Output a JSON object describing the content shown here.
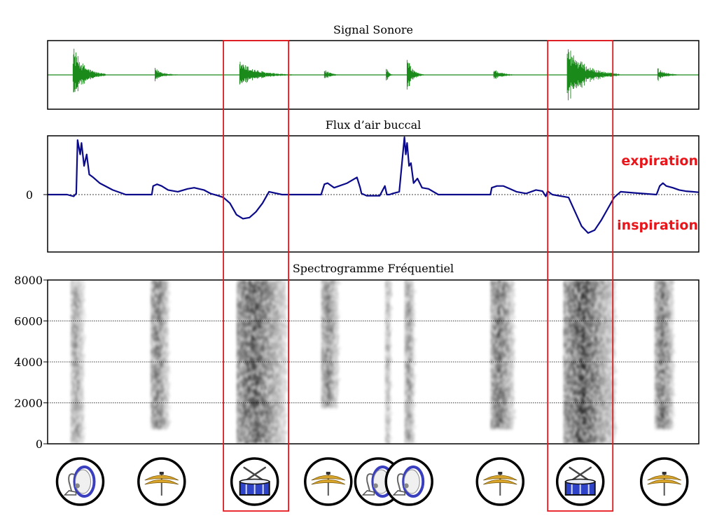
{
  "chart_data": [
    {
      "type": "line",
      "title": "Signal Sonore",
      "series": [
        {
          "name": "Signal Sonore",
          "color": "#1a8a1a"
        }
      ],
      "events": [
        {
          "t": 0.039,
          "amp": 0.95,
          "dur": 0.05
        },
        {
          "t": 0.165,
          "amp": 0.22,
          "dur": 0.04
        },
        {
          "t": 0.295,
          "amp": 0.45,
          "dur": 0.08
        },
        {
          "t": 0.425,
          "amp": 0.18,
          "dur": 0.03
        },
        {
          "t": 0.52,
          "amp": 0.3,
          "dur": 0.01
        },
        {
          "t": 0.552,
          "amp": 0.6,
          "dur": 0.025
        },
        {
          "t": 0.685,
          "amp": 0.2,
          "dur": 0.04
        },
        {
          "t": 0.798,
          "amp": 1.0,
          "dur": 0.08
        },
        {
          "t": 0.937,
          "amp": 0.22,
          "dur": 0.04
        }
      ]
    },
    {
      "type": "line",
      "title": "Flux d’air buccal",
      "ytick_labels": [
        "0"
      ],
      "annotations": [
        {
          "text": "expiration",
          "color": "#e8161b"
        },
        {
          "text": "inspiration",
          "color": "#e8161b"
        }
      ],
      "series": [
        {
          "name": "Flux d’air buccal",
          "color": "#0a0a8a",
          "x": [
            0,
            0.03,
            0.04,
            0.044,
            0.046,
            0.05,
            0.052,
            0.056,
            0.06,
            0.064,
            0.07,
            0.08,
            0.09,
            0.1,
            0.12,
            0.15,
            0.16,
            0.162,
            0.168,
            0.175,
            0.185,
            0.2,
            0.215,
            0.225,
            0.24,
            0.25,
            0.262,
            0.27,
            0.28,
            0.29,
            0.3,
            0.31,
            0.32,
            0.33,
            0.34,
            0.36,
            0.4,
            0.42,
            0.425,
            0.43,
            0.44,
            0.46,
            0.475,
            0.48,
            0.482,
            0.49,
            0.51,
            0.518,
            0.521,
            0.525,
            0.53,
            0.54,
            0.548,
            0.55,
            0.552,
            0.555,
            0.558,
            0.562,
            0.568,
            0.575,
            0.585,
            0.6,
            0.62,
            0.66,
            0.68,
            0.682,
            0.69,
            0.7,
            0.71,
            0.72,
            0.735,
            0.75,
            0.76,
            0.765,
            0.768,
            0.775,
            0.8,
            0.81,
            0.82,
            0.83,
            0.84,
            0.85,
            0.86,
            0.87,
            0.88,
            0.9,
            0.935,
            0.94,
            0.945,
            0.95,
            0.96,
            0.97,
            0.98,
            0.99,
            1.0
          ],
          "values": [
            0,
            0,
            -0.03,
            0.02,
            0.95,
            0.7,
            0.9,
            0.5,
            0.7,
            0.35,
            0.3,
            0.2,
            0.14,
            0.08,
            0.0,
            0.0,
            0.0,
            0.15,
            0.18,
            0.15,
            0.08,
            0.05,
            0.1,
            0.12,
            0.08,
            0.02,
            -0.02,
            -0.05,
            -0.15,
            -0.35,
            -0.42,
            -0.4,
            -0.3,
            -0.15,
            0.05,
            0.0,
            0.0,
            0.0,
            0.18,
            0.2,
            0.12,
            0.2,
            0.3,
            0.12,
            0.02,
            -0.02,
            -0.02,
            0.15,
            0.0,
            0.0,
            0.02,
            0.05,
            1.0,
            0.7,
            0.9,
            0.5,
            0.55,
            0.2,
            0.28,
            0.12,
            0.1,
            0.0,
            0.0,
            0.0,
            0.0,
            0.12,
            0.15,
            0.15,
            0.1,
            0.05,
            0.02,
            0.08,
            0.06,
            -0.03,
            0.06,
            0.0,
            -0.05,
            -0.3,
            -0.55,
            -0.67,
            -0.62,
            -0.45,
            -0.25,
            -0.05,
            0.05,
            0.03,
            0.0,
            0.15,
            0.2,
            0.15,
            0.12,
            0.08,
            0.06,
            0.05,
            0.04
          ]
        }
      ]
    },
    {
      "type": "heatmap",
      "title": "Spectrogramme Fréquentiel",
      "ylim": [
        0,
        8000
      ],
      "ytick_values": [
        0,
        2000,
        4000,
        6000,
        8000
      ],
      "ytick_labels": [
        "0",
        "2000",
        "4000",
        "6000",
        "8000"
      ],
      "grid": true,
      "bands": [
        {
          "start": 0.035,
          "end": 0.055,
          "intensity": 0.55,
          "lowest_hz": 0
        },
        {
          "start": 0.158,
          "end": 0.185,
          "intensity": 0.75,
          "lowest_hz": 800
        },
        {
          "start": 0.29,
          "end": 0.365,
          "intensity": 0.9,
          "lowest_hz": 0
        },
        {
          "start": 0.42,
          "end": 0.445,
          "intensity": 0.7,
          "lowest_hz": 1800
        },
        {
          "start": 0.518,
          "end": 0.526,
          "intensity": 0.45,
          "lowest_hz": 0
        },
        {
          "start": 0.548,
          "end": 0.562,
          "intensity": 0.6,
          "lowest_hz": 0
        },
        {
          "start": 0.68,
          "end": 0.715,
          "intensity": 0.8,
          "lowest_hz": 800
        },
        {
          "start": 0.792,
          "end": 0.87,
          "intensity": 0.95,
          "lowest_hz": 0
        },
        {
          "start": 0.932,
          "end": 0.96,
          "intensity": 0.8,
          "lowest_hz": 800
        }
      ]
    }
  ],
  "highlights": [
    {
      "start": 0.27,
      "end": 0.37,
      "color": "#e8161b"
    },
    {
      "start": 0.768,
      "end": 0.868,
      "color": "#e8161b"
    }
  ],
  "instruments": [
    {
      "icon": "bass-drum-icon",
      "t": 0.05
    },
    {
      "icon": "cymbal-icon",
      "t": 0.175
    },
    {
      "icon": "snare-drum-icon",
      "t": 0.318
    },
    {
      "icon": "cymbal-icon",
      "t": 0.431
    },
    {
      "icon": "bass-drum-icon",
      "t": 0.508
    },
    {
      "icon": "bass-drum-icon",
      "t": 0.555
    },
    {
      "icon": "cymbal-icon",
      "t": 0.695
    },
    {
      "icon": "snare-drum-icon",
      "t": 0.818
    },
    {
      "icon": "cymbal-icon",
      "t": 0.947
    }
  ],
  "colors": {
    "signal": "#1a8a1a",
    "airflow": "#0a0a8a",
    "highlight": "#e8161b",
    "cymbal": "#d9a52b",
    "snare": "#2f43c9",
    "kick": "#3a3fc0"
  }
}
